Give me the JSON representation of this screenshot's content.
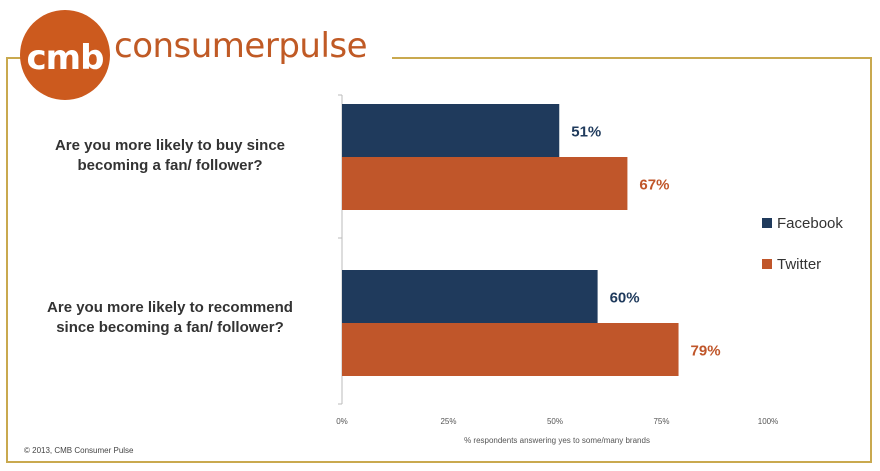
{
  "logo": {
    "mark": "cmb",
    "wordmark": "consumerpulse"
  },
  "copyright": "© 2013, CMB Consumer Pulse",
  "colors": {
    "facebook": "#1f3a5c",
    "twitter": "#c0562a",
    "frame": "#c9a94f",
    "brand": "#c05a25"
  },
  "chart_data": {
    "type": "bar",
    "orientation": "horizontal",
    "categories": [
      "Are you more likely to buy since becoming a fan/ follower?",
      "Are you more likely to recommend since becoming a fan/ follower?"
    ],
    "category_lines": [
      [
        "Are you more likely to buy since",
        "becoming a fan/ follower?"
      ],
      [
        "Are you more likely to recommend",
        "since becoming a fan/ follower?"
      ]
    ],
    "series": [
      {
        "name": "Facebook",
        "values": [
          51,
          60
        ],
        "labels": [
          "51%",
          "60%"
        ]
      },
      {
        "name": "Twitter",
        "values": [
          67,
          79
        ],
        "labels": [
          "67%",
          "79%"
        ]
      }
    ],
    "xlim": [
      0,
      100
    ],
    "xticks": [
      "0%",
      "25%",
      "50%",
      "75%",
      "100%"
    ],
    "xlabel": "% respondents answering yes to some/many brands",
    "legend_position": "right",
    "grid": false
  }
}
